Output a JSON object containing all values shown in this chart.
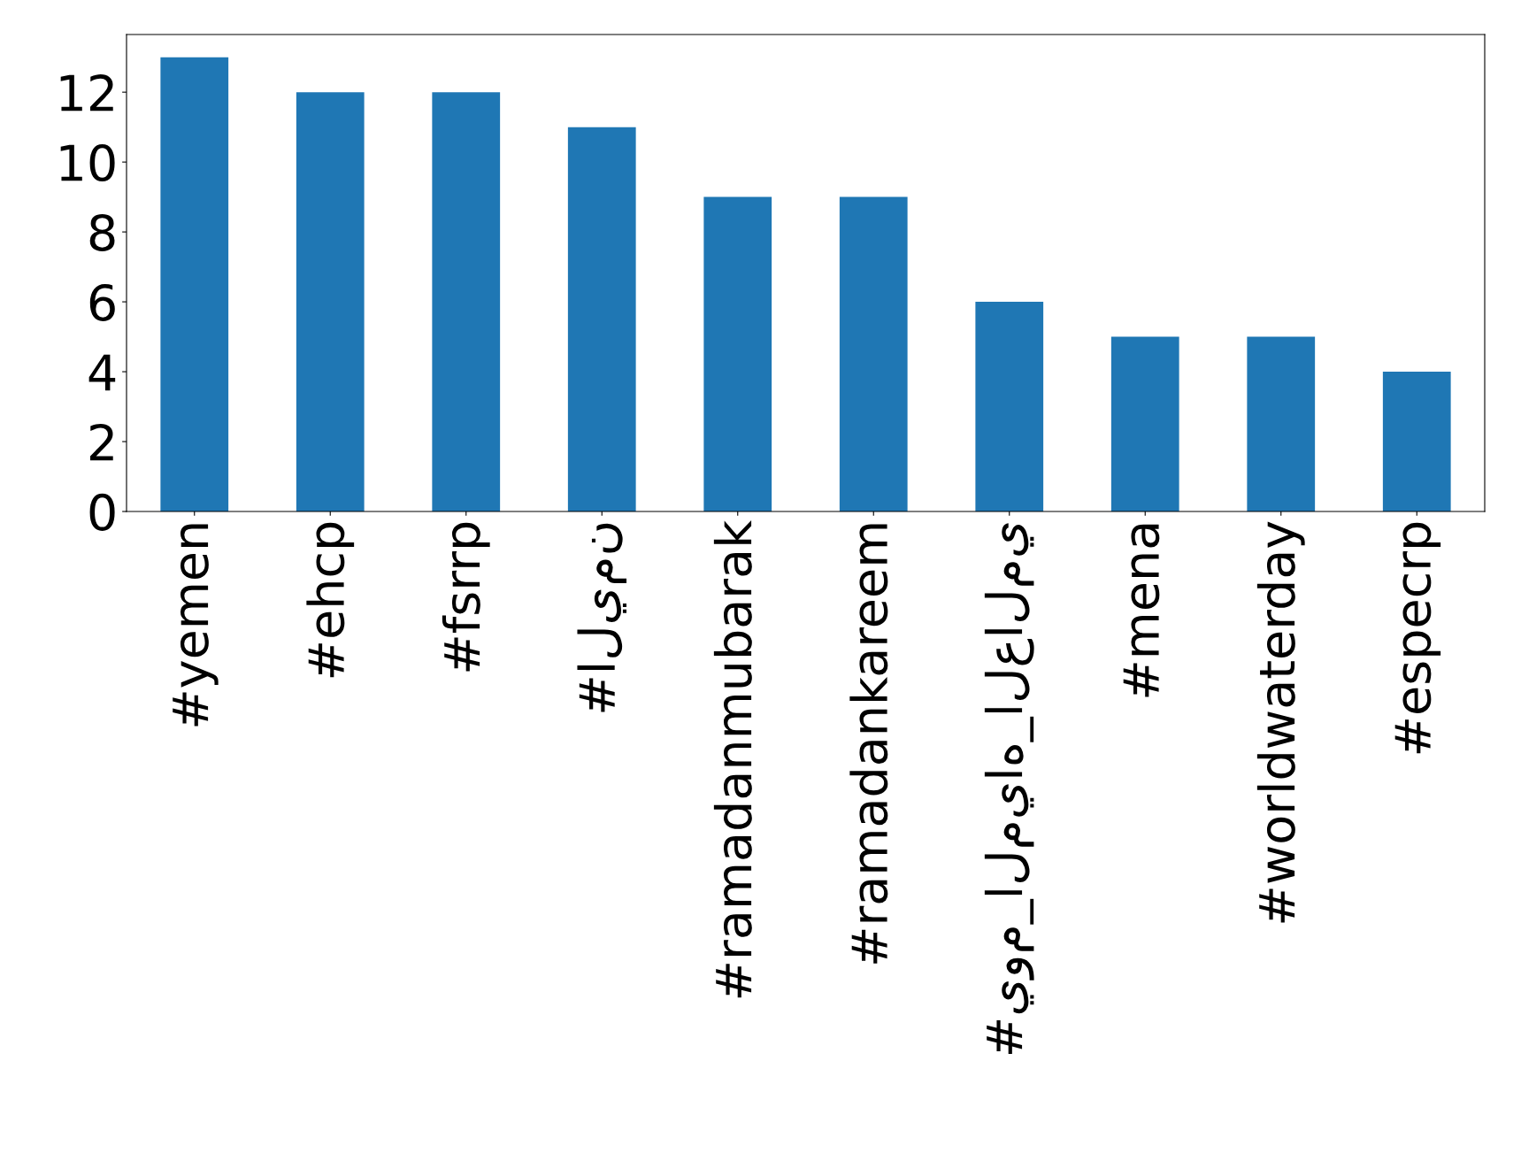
{
  "chart_data": {
    "type": "bar",
    "categories": [
      "#yemen",
      "#ehcp",
      "#fsrrp",
      "#اليمن",
      "#ramadanmubarak",
      "#ramadankareem",
      "#يوم_المياه_العالمي",
      "#mena",
      "#worldwaterday",
      "#especrp"
    ],
    "values": [
      13,
      12,
      12,
      11,
      9,
      9,
      6,
      5,
      5,
      4
    ],
    "color": "#1f77b4",
    "ylim": [
      0,
      13.65
    ],
    "yticks": [
      0,
      2,
      4,
      6,
      8,
      10,
      12
    ],
    "grid": false,
    "legend": false
  }
}
